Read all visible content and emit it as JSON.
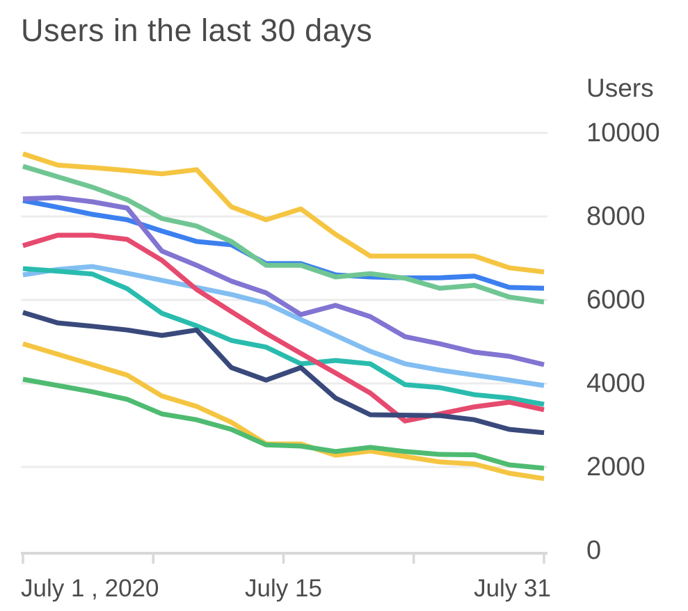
{
  "title": "Users in the last 30 days",
  "palette": {
    "text": "#4C4C4C",
    "title_text": "#4A4A4A",
    "gridline": "#ECECEC",
    "axis_line": "#D8D8D8",
    "background": "#FFFFFF"
  },
  "chart_data": {
    "type": "line",
    "title": "Users in the last 30 days",
    "ylabel": "Users",
    "xlabel": "",
    "ylim": [
      0,
      10000
    ],
    "xlim": [
      1,
      31
    ],
    "grid": "horizontal",
    "legend": "none",
    "y_ticks": [
      10000,
      8000,
      6000,
      4000,
      2000,
      0
    ],
    "y_gridlines": [
      10000,
      8000,
      6000,
      4000,
      2000
    ],
    "x_unit": "day of July 2020",
    "x_tick_days": [
      1,
      8.5,
      16,
      23.5,
      31
    ],
    "x_tick_labels": [
      {
        "text": "July 1 , 2020",
        "day": 1,
        "align": "left"
      },
      {
        "text": "July 15",
        "day": 16,
        "align": "center"
      },
      {
        "text": "July 31",
        "day": 31,
        "align": "right"
      }
    ],
    "x": [
      1,
      3,
      5,
      7,
      9,
      11,
      13,
      15,
      17,
      19,
      21,
      23,
      25,
      27,
      29,
      31
    ],
    "series": [
      {
        "name": "light-blue",
        "color": "#82BEF2",
        "values": [
          6600,
          6730,
          6800,
          6640,
          6470,
          6300,
          6130,
          5920,
          5530,
          5150,
          4770,
          4470,
          4320,
          4200,
          4080,
          3950
        ]
      },
      {
        "name": "teal",
        "color": "#29BCAE",
        "values": [
          6750,
          6690,
          6620,
          6270,
          5680,
          5380,
          5030,
          4870,
          4470,
          4550,
          4470,
          3970,
          3900,
          3730,
          3650,
          3500
        ]
      },
      {
        "name": "red",
        "color": "#E64A6E",
        "values": [
          7300,
          7550,
          7550,
          7450,
          6950,
          6250,
          5720,
          5200,
          4720,
          4250,
          3770,
          3100,
          3270,
          3440,
          3550,
          3370
        ]
      },
      {
        "name": "navy",
        "color": "#39497B",
        "values": [
          5700,
          5450,
          5370,
          5280,
          5150,
          5280,
          4380,
          4080,
          4380,
          3650,
          3250,
          3240,
          3230,
          3130,
          2900,
          2820
        ]
      },
      {
        "name": "gold-bottom",
        "color": "#F5C542",
        "values": [
          4950,
          4700,
          4450,
          4200,
          3700,
          3450,
          3070,
          2550,
          2550,
          2280,
          2380,
          2250,
          2120,
          2070,
          1850,
          1720
        ]
      },
      {
        "name": "green-bottom",
        "color": "#4EBB71",
        "values": [
          4100,
          3950,
          3800,
          3620,
          3270,
          3130,
          2900,
          2530,
          2500,
          2370,
          2470,
          2370,
          2300,
          2290,
          2050,
          1970
        ]
      },
      {
        "name": "blue",
        "color": "#3C80EF",
        "values": [
          8380,
          8220,
          8050,
          7920,
          7650,
          7400,
          7320,
          6870,
          6870,
          6600,
          6550,
          6530,
          6530,
          6570,
          6300,
          6280
        ]
      },
      {
        "name": "green-soft",
        "color": "#70C693",
        "values": [
          9200,
          8950,
          8700,
          8400,
          7950,
          7770,
          7400,
          6830,
          6830,
          6550,
          6630,
          6520,
          6280,
          6350,
          6070,
          5950
        ]
      },
      {
        "name": "purple",
        "color": "#8174D2",
        "values": [
          8420,
          8450,
          8350,
          8200,
          7170,
          6830,
          6450,
          6170,
          5650,
          5870,
          5600,
          5120,
          4950,
          4750,
          4650,
          4450
        ]
      },
      {
        "name": "gold-top",
        "color": "#F5C542",
        "values": [
          9500,
          9230,
          9170,
          9100,
          9020,
          9120,
          8230,
          7920,
          8180,
          7570,
          7050,
          7050,
          7050,
          7050,
          6770,
          6670
        ]
      }
    ]
  }
}
